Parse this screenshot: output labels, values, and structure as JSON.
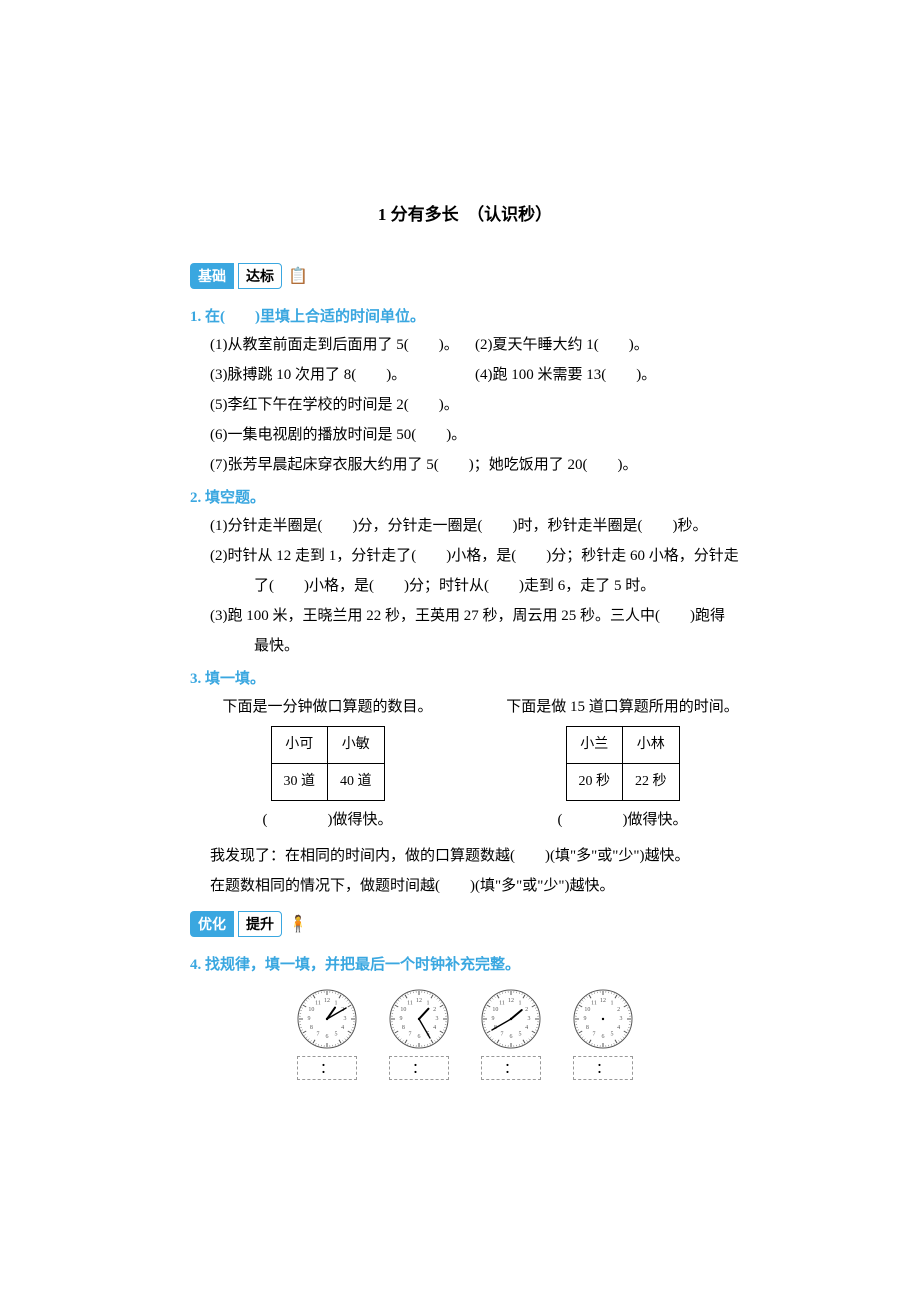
{
  "title": "1 分有多长　（认识秒）",
  "badges": {
    "basic_left": "基础",
    "basic_right": "达标",
    "adv_left": "优化",
    "adv_right": "提升"
  },
  "q1": {
    "heading": "1. 在(　　)里填上合适的时间单位。",
    "items": {
      "i1": "(1)从教室前面走到后面用了 5(　　)。",
      "i2": "(2)夏天午睡大约 1(　　)。",
      "i3": "(3)脉搏跳 10 次用了 8(　　)。",
      "i4": "(4)跑 100 米需要 13(　　)。",
      "i5": "(5)李红下午在学校的时间是 2(　　)。",
      "i6": "(6)一集电视剧的播放时间是 50(　　)。",
      "i7": "(7)张芳早晨起床穿衣服大约用了 5(　　)；她吃饭用了 20(　　)。"
    }
  },
  "q2": {
    "heading": "2. 填空题。",
    "i1": "(1)分针走半圈是(　　)分，分针走一圈是(　　)时，秒针走半圈是(　　)秒。",
    "i2a": "(2)时针从 12 走到 1，分针走了(　　)小格，是(　　)分；秒针走 60 小格，分针走",
    "i2b": "了(　　)小格，是(　　)分；时针从(　　)走到 6，走了 5 时。",
    "i3a": "(3)跑 100 米，王晓兰用 22 秒，王英用 27 秒，周云用 25 秒。三人中(　　)跑得",
    "i3b": "最快。"
  },
  "q3": {
    "heading": "3. 填一填。",
    "left_caption": "下面是一分钟做口算题的数目。",
    "right_caption": "下面是做 15 道口算题所用的时间。",
    "table1": {
      "h1": "小可",
      "h2": "小敏",
      "v1": "30 道",
      "v2": "40 道"
    },
    "table2": {
      "h1": "小兰",
      "h2": "小林",
      "v1": "20 秒",
      "v2": "22 秒"
    },
    "after": "(　　　　)做得快。",
    "line1": "我发现了：在相同的时间内，做的口算题数越(　　)(填\"多\"或\"少\")越快。",
    "line2": "在题数相同的情况下，做题时间越(　　)(填\"多\"或\"少\")越快。"
  },
  "q4": {
    "heading": "4. 找规律，填一填，并把最后一个时钟补充完整。",
    "clocks": [
      {
        "hour": 1,
        "minute": 10
      },
      {
        "hour": 1,
        "minute": 25
      },
      {
        "hour": 1,
        "minute": 40
      },
      {
        "hour": null,
        "minute": null
      }
    ],
    "colon": "：",
    "clock_style": {
      "size": 62,
      "face_fill": "#ffffff",
      "stroke": "#555555",
      "numeral_size": 6,
      "center_dot_r": 1.2,
      "hour_hand_len": 14,
      "minute_hand_len": 22
    }
  }
}
